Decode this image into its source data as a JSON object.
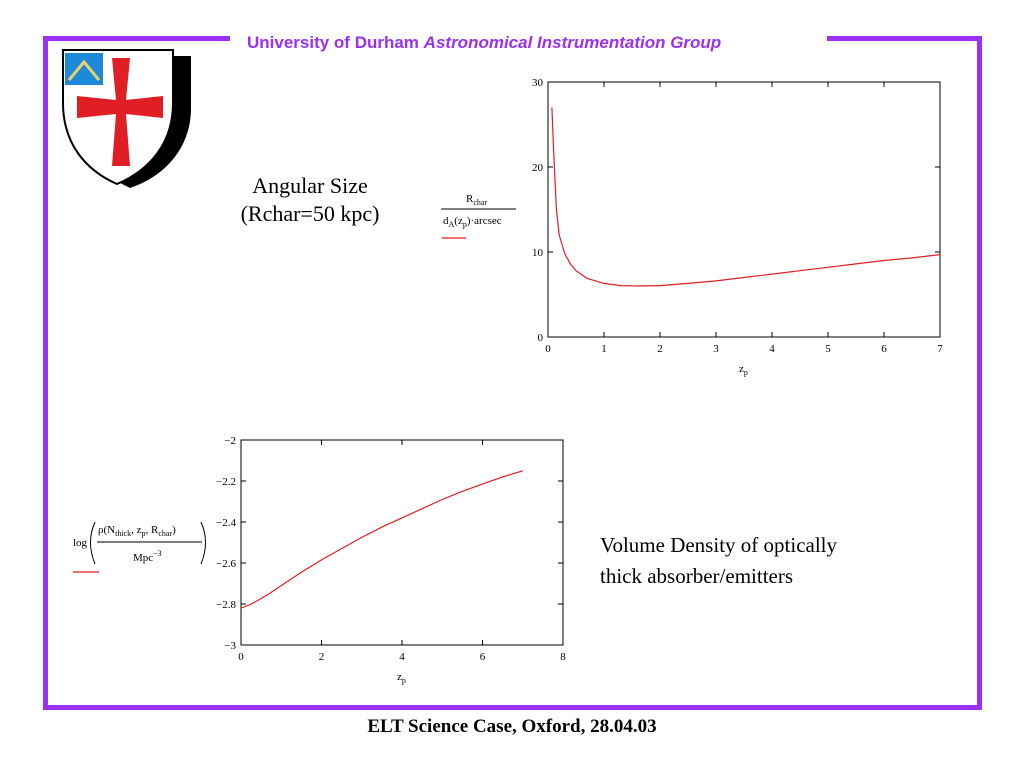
{
  "header": {
    "org": "University of Durham",
    "group": "Astronomical Instrumentation Group"
  },
  "logo": {
    "name": "durham-shield",
    "cross_color": "#e01e24",
    "fill_color": "#ffffff",
    "shadow_color": "#000000",
    "accent_color": "#1c8ad8"
  },
  "captions": {
    "angular_line1": "Angular Size",
    "angular_line2": "(Rchar=50 kpc)",
    "volume_line1": "Volume Density of optically",
    "volume_line2": "thick absorber/emitters"
  },
  "footer": {
    "text": "ELT Science Case, Oxford, 28.04.03"
  },
  "colors": {
    "accent": "#9b30f0",
    "series": "#e01e24"
  },
  "chart_data": [
    {
      "type": "line",
      "xlabel": "z",
      "xlabel_sub": "p",
      "ylabel_num": "R",
      "ylabel_num_sub": "char",
      "ylabel_den_a": "d",
      "ylabel_den_a_sub": "A",
      "ylabel_den_b": "(z",
      "ylabel_den_b_sub": "p",
      "ylabel_den_c": ")·arcsec",
      "xlim": [
        0,
        7
      ],
      "ylim": [
        0,
        30
      ],
      "xticks": [
        "0",
        "1",
        "2",
        "3",
        "4",
        "5",
        "6",
        "7"
      ],
      "yticks": [
        "0",
        "10",
        "20",
        "30"
      ],
      "series": [
        {
          "x": [
            0.07,
            0.1,
            0.15,
            0.2,
            0.3,
            0.4,
            0.5,
            0.7,
            1.0,
            1.3,
            1.6,
            2.0,
            2.5,
            3.0,
            3.5,
            4.0,
            4.5,
            5.0,
            5.5,
            6.0,
            6.5,
            7.0
          ],
          "y": [
            27.0,
            22.0,
            15.0,
            12.0,
            9.8,
            8.6,
            7.8,
            6.9,
            6.3,
            6.05,
            6.0,
            6.05,
            6.3,
            6.6,
            7.0,
            7.4,
            7.8,
            8.2,
            8.6,
            9.0,
            9.3,
            9.7
          ]
        }
      ]
    },
    {
      "type": "line",
      "xlabel": "z",
      "xlabel_sub": "p",
      "ylabel_log": "log",
      "ylabel_num": "ρ(N",
      "ylabel_num_sub": "thick",
      "ylabel_num_mid": ", z",
      "ylabel_num_sub2": "p",
      "ylabel_num_end": ", R",
      "ylabel_num_sub3": "char",
      "ylabel_num_close": ")",
      "ylabel_den": "Mpc",
      "ylabel_den_sup": "−3",
      "xlim": [
        0,
        8
      ],
      "ylim": [
        -3,
        -2
      ],
      "xticks": [
        "0",
        "2",
        "4",
        "6",
        "8"
      ],
      "yticks": [
        "−3",
        "−2.8",
        "−2.6",
        "−2.4",
        "−2.2",
        "−2"
      ],
      "series": [
        {
          "x": [
            0.0,
            0.2,
            0.4,
            0.7,
            1.0,
            1.5,
            2.0,
            2.5,
            3.0,
            3.5,
            4.0,
            4.5,
            5.0,
            5.5,
            6.0,
            6.5,
            7.0
          ],
          "y": [
            -2.82,
            -2.805,
            -2.785,
            -2.75,
            -2.71,
            -2.645,
            -2.585,
            -2.53,
            -2.475,
            -2.425,
            -2.38,
            -2.335,
            -2.29,
            -2.25,
            -2.215,
            -2.18,
            -2.15
          ]
        }
      ]
    }
  ]
}
